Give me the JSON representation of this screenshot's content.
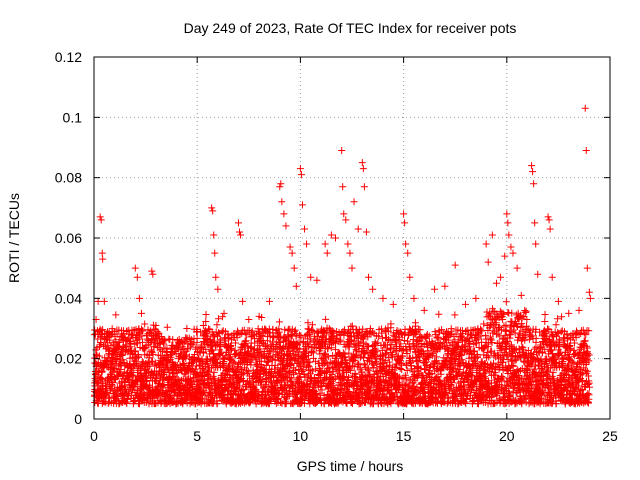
{
  "chart_data": {
    "type": "scatter",
    "title": "Day 249 of 2023, Rate Of TEC Index for receiver pots",
    "xlabel": "GPS time / hours",
    "ylabel": "ROTI / TECUs",
    "xlim": [
      0,
      25
    ],
    "ylim": [
      0,
      0.12
    ],
    "xticks": [
      "0",
      "5",
      "10",
      "15",
      "20",
      "25"
    ],
    "yticks": [
      "0",
      "0.02",
      "0.04",
      "0.06",
      "0.08",
      "0.1",
      "0.12"
    ],
    "grid": true,
    "marker": "plus",
    "color": "#ff0000",
    "series": [
      {
        "bulk_band": {
          "x_range": [
            0,
            24
          ],
          "y_range": [
            0.005,
            0.03
          ],
          "dense": true
        },
        "points": [
          {
            "x": 0.1,
            "y": 0.033
          },
          {
            "x": 0.2,
            "y": 0.039
          },
          {
            "x": 0.3,
            "y": 0.067
          },
          {
            "x": 0.35,
            "y": 0.066
          },
          {
            "x": 0.4,
            "y": 0.055
          },
          {
            "x": 0.42,
            "y": 0.053
          },
          {
            "x": 0.5,
            "y": 0.039
          },
          {
            "x": 1.0,
            "y": 0.029
          },
          {
            "x": 1.5,
            "y": 0.027
          },
          {
            "x": 2.0,
            "y": 0.05
          },
          {
            "x": 2.1,
            "y": 0.047
          },
          {
            "x": 2.2,
            "y": 0.04
          },
          {
            "x": 2.3,
            "y": 0.035
          },
          {
            "x": 2.8,
            "y": 0.049
          },
          {
            "x": 2.85,
            "y": 0.048
          },
          {
            "x": 3.0,
            "y": 0.031
          },
          {
            "x": 4.5,
            "y": 0.03
          },
          {
            "x": 5.0,
            "y": 0.029
          },
          {
            "x": 5.3,
            "y": 0.031
          },
          {
            "x": 5.7,
            "y": 0.07
          },
          {
            "x": 5.75,
            "y": 0.069
          },
          {
            "x": 5.8,
            "y": 0.061
          },
          {
            "x": 5.85,
            "y": 0.055
          },
          {
            "x": 5.9,
            "y": 0.047
          },
          {
            "x": 6.0,
            "y": 0.043
          },
          {
            "x": 6.3,
            "y": 0.035
          },
          {
            "x": 7.0,
            "y": 0.065
          },
          {
            "x": 7.05,
            "y": 0.062
          },
          {
            "x": 7.1,
            "y": 0.061
          },
          {
            "x": 7.2,
            "y": 0.039
          },
          {
            "x": 7.5,
            "y": 0.033
          },
          {
            "x": 8.0,
            "y": 0.034
          },
          {
            "x": 8.5,
            "y": 0.039
          },
          {
            "x": 9.0,
            "y": 0.077
          },
          {
            "x": 9.05,
            "y": 0.078
          },
          {
            "x": 9.1,
            "y": 0.072
          },
          {
            "x": 9.2,
            "y": 0.068
          },
          {
            "x": 9.3,
            "y": 0.064
          },
          {
            "x": 9.5,
            "y": 0.057
          },
          {
            "x": 9.6,
            "y": 0.055
          },
          {
            "x": 9.7,
            "y": 0.05
          },
          {
            "x": 9.8,
            "y": 0.044
          },
          {
            "x": 10.0,
            "y": 0.083
          },
          {
            "x": 10.05,
            "y": 0.081
          },
          {
            "x": 10.1,
            "y": 0.071
          },
          {
            "x": 10.2,
            "y": 0.063
          },
          {
            "x": 10.3,
            "y": 0.058
          },
          {
            "x": 10.5,
            "y": 0.047
          },
          {
            "x": 10.8,
            "y": 0.046
          },
          {
            "x": 11.2,
            "y": 0.058
          },
          {
            "x": 11.3,
            "y": 0.055
          },
          {
            "x": 11.5,
            "y": 0.061
          },
          {
            "x": 11.7,
            "y": 0.06
          },
          {
            "x": 12.0,
            "y": 0.089
          },
          {
            "x": 12.05,
            "y": 0.077
          },
          {
            "x": 12.1,
            "y": 0.068
          },
          {
            "x": 12.2,
            "y": 0.066
          },
          {
            "x": 12.3,
            "y": 0.058
          },
          {
            "x": 12.4,
            "y": 0.055
          },
          {
            "x": 12.5,
            "y": 0.05
          },
          {
            "x": 12.6,
            "y": 0.072
          },
          {
            "x": 12.8,
            "y": 0.063
          },
          {
            "x": 13.0,
            "y": 0.085
          },
          {
            "x": 13.05,
            "y": 0.083
          },
          {
            "x": 13.1,
            "y": 0.077
          },
          {
            "x": 13.2,
            "y": 0.062
          },
          {
            "x": 13.3,
            "y": 0.047
          },
          {
            "x": 13.5,
            "y": 0.043
          },
          {
            "x": 14.0,
            "y": 0.04
          },
          {
            "x": 14.5,
            "y": 0.038
          },
          {
            "x": 15.0,
            "y": 0.068
          },
          {
            "x": 15.05,
            "y": 0.065
          },
          {
            "x": 15.1,
            "y": 0.058
          },
          {
            "x": 15.2,
            "y": 0.055
          },
          {
            "x": 15.3,
            "y": 0.047
          },
          {
            "x": 15.5,
            "y": 0.04
          },
          {
            "x": 16.0,
            "y": 0.036
          },
          {
            "x": 16.5,
            "y": 0.043
          },
          {
            "x": 17.0,
            "y": 0.044
          },
          {
            "x": 17.5,
            "y": 0.051
          },
          {
            "x": 18.0,
            "y": 0.038
          },
          {
            "x": 18.5,
            "y": 0.04
          },
          {
            "x": 19.0,
            "y": 0.058
          },
          {
            "x": 19.1,
            "y": 0.052
          },
          {
            "x": 19.3,
            "y": 0.061
          },
          {
            "x": 19.5,
            "y": 0.045
          },
          {
            "x": 19.7,
            "y": 0.047
          },
          {
            "x": 19.9,
            "y": 0.054
          },
          {
            "x": 20.0,
            "y": 0.068
          },
          {
            "x": 20.05,
            "y": 0.065
          },
          {
            "x": 20.1,
            "y": 0.061
          },
          {
            "x": 20.2,
            "y": 0.057
          },
          {
            "x": 20.3,
            "y": 0.055
          },
          {
            "x": 20.5,
            "y": 0.05
          },
          {
            "x": 20.7,
            "y": 0.041
          },
          {
            "x": 21.2,
            "y": 0.084
          },
          {
            "x": 21.25,
            "y": 0.082
          },
          {
            "x": 21.3,
            "y": 0.078
          },
          {
            "x": 21.35,
            "y": 0.065
          },
          {
            "x": 21.4,
            "y": 0.058
          },
          {
            "x": 21.5,
            "y": 0.048
          },
          {
            "x": 22.0,
            "y": 0.067
          },
          {
            "x": 22.05,
            "y": 0.066
          },
          {
            "x": 22.1,
            "y": 0.063
          },
          {
            "x": 22.2,
            "y": 0.047
          },
          {
            "x": 22.5,
            "y": 0.039
          },
          {
            "x": 23.0,
            "y": 0.035
          },
          {
            "x": 23.5,
            "y": 0.036
          },
          {
            "x": 23.8,
            "y": 0.103
          },
          {
            "x": 23.85,
            "y": 0.089
          },
          {
            "x": 23.9,
            "y": 0.05
          },
          {
            "x": 24.0,
            "y": 0.042
          },
          {
            "x": 24.05,
            "y": 0.04
          }
        ]
      }
    ]
  }
}
